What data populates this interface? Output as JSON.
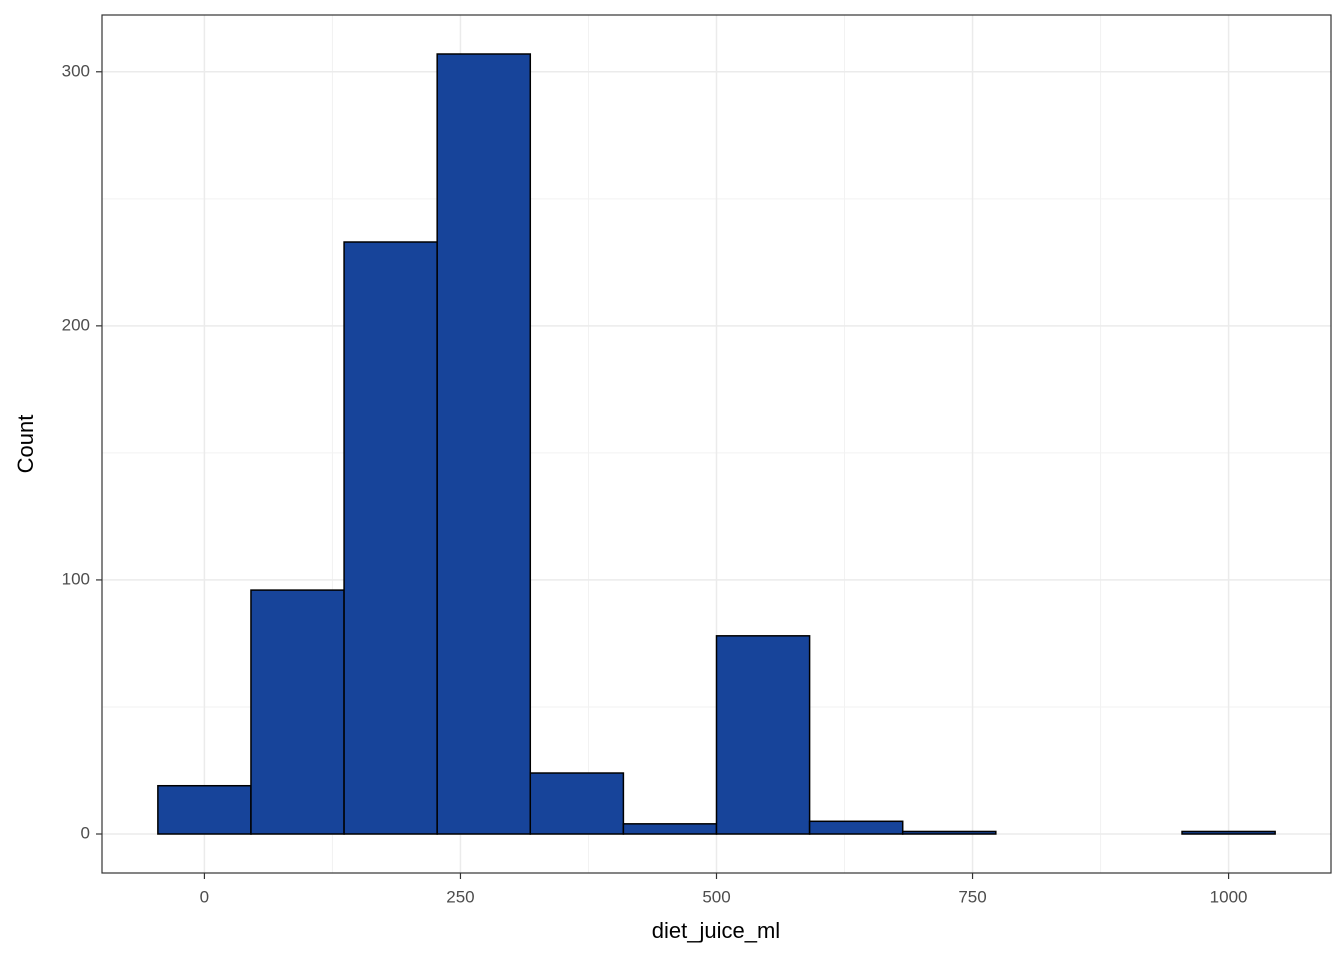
{
  "chart_data": {
    "type": "histogram",
    "x_label": "diet_juice_ml",
    "y_label": "Count",
    "bins": [
      -45.45,
      45.45,
      136.36,
      227.27,
      318.18,
      409.09,
      500,
      590.91,
      681.82,
      772.73,
      863.64,
      954.55,
      1045.45
    ],
    "counts": [
      19,
      96,
      233,
      307,
      24,
      4,
      78,
      5,
      1,
      0,
      0,
      1
    ],
    "color": "#17449a",
    "edge_color": "#000000",
    "xlim": [
      -100,
      1100
    ],
    "xticks": [
      0,
      250,
      500,
      750,
      1000
    ],
    "ylim": [
      -15.35,
      322.35
    ],
    "yticks": [
      0,
      100,
      200,
      300
    ],
    "grid": true
  }
}
